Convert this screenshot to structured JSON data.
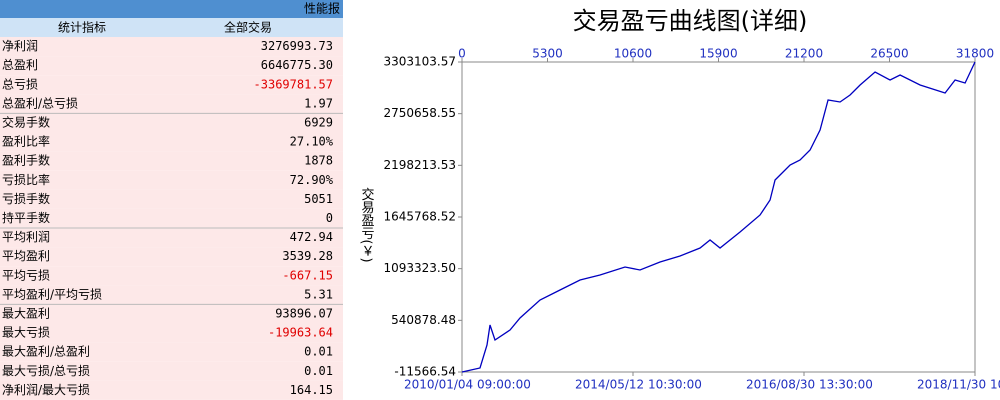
{
  "header": {
    "title": "性能报"
  },
  "table": {
    "columns": [
      "统计指标",
      "全部交易"
    ],
    "rows": [
      [
        "净利润",
        "3276993.73"
      ],
      [
        "总盈利",
        "6646775.30"
      ],
      [
        "总亏损",
        "-3369781.57"
      ],
      [
        "总盈利/总亏损",
        "1.97"
      ],
      [
        "交易手数",
        "6929"
      ],
      [
        "盈利比率",
        "27.10%"
      ],
      [
        "盈利手数",
        "1878"
      ],
      [
        "亏损比率",
        "72.90%"
      ],
      [
        "亏损手数",
        "5051"
      ],
      [
        "持平手数",
        "0"
      ],
      [
        "平均利润",
        "472.94"
      ],
      [
        "平均盈利",
        "3539.28"
      ],
      [
        "平均亏损",
        "-667.15"
      ],
      [
        "平均盈利/平均亏损",
        "5.31"
      ],
      [
        "最大盈利",
        "93896.07"
      ],
      [
        "最大亏损",
        "-19963.64"
      ],
      [
        "最大盈利/总盈利",
        "0.01"
      ],
      [
        "最大亏损/总亏损",
        "0.01"
      ],
      [
        "净利润/最大亏损",
        "164.15"
      ]
    ]
  },
  "chart_data": {
    "type": "line",
    "title": "交易盈亏曲线图(详细)",
    "y_label": "交易盈亏(￥)",
    "x": [
      0,
      1116,
      1550,
      1736,
      2046,
      2976,
      3596,
      4836,
      6076,
      7316,
      8556,
      10106,
      11036,
      12276,
      13516,
      14756,
      15376,
      15996,
      17236,
      18476,
      19096,
      19406,
      20336,
      20956,
      21576,
      22196,
      22692,
      23436,
      24056,
      24676,
      25606,
      26536,
      27156,
      28396,
      29946,
      30566,
      31186,
      31800
    ],
    "series": [
      {
        "name": "交易盈亏",
        "color": "#0000c0",
        "values": [
          -11567,
          31203,
          277131,
          490981,
          330593,
          437518,
          565828,
          758293,
          865218,
          972143,
          1025606,
          1111146,
          1079068,
          1164608,
          1228763,
          1314303,
          1399843,
          1314303,
          1485383,
          1667156,
          1827543,
          2041393,
          2201781,
          2255243,
          2362168,
          2576018,
          2896793,
          2875408,
          2950256,
          3057181,
          3196183,
          3110643,
          3164106,
          3057181,
          2971641,
          3110643,
          3078588,
          3303103.57
        ]
      }
    ],
    "xlim": [
      0,
      31800
    ],
    "xticks": [
      0,
      5300,
      10600,
      15900,
      21200,
      26500,
      31800
    ],
    "x2ticks": [
      {
        "value": 0,
        "label": "2010/01/04 09:00:00"
      },
      {
        "value": 10600,
        "label": "2014/05/12 10:30:00"
      },
      {
        "value": 21200,
        "label": "2016/08/30 13:30:00"
      },
      {
        "value": 31800,
        "label": "2018/11/30 10"
      }
    ],
    "ylim": [
      -11566.54,
      3303103.57
    ],
    "yticks": [
      {
        "value": 3303103.57,
        "label": "3303103.57"
      },
      {
        "value": 2750658.55,
        "label": "2750658.55"
      },
      {
        "value": 2198213.53,
        "label": "2198213.53"
      },
      {
        "value": 1645768.52,
        "label": "1645768.52"
      },
      {
        "value": 1093323.5,
        "label": "1093323.50"
      },
      {
        "value": 540878.48,
        "label": "540878.48"
      },
      {
        "value": -11566.54,
        "label": "-11566.54"
      }
    ],
    "grid": false
  }
}
